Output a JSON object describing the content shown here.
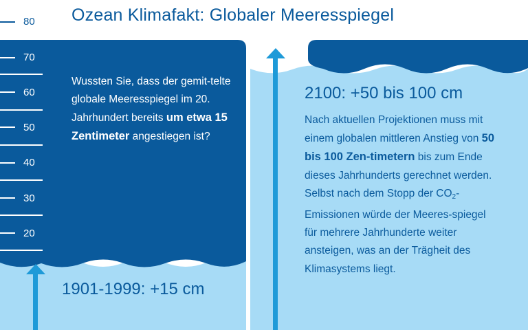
{
  "title": "Ozean Klimafakt: Globaler Meeresspiegel",
  "scale": {
    "unit": "cm",
    "labels": [
      "80",
      "70",
      "60",
      "50",
      "40",
      "30",
      "20"
    ]
  },
  "left_panel": {
    "text_before": "Wussten Sie, dass der gemit-telte globale Meeresspiegel im 20. Jahrhundert bereits",
    "text_bold": "um etwa 15 Zentimeter",
    "text_after": "angestiegen ist?",
    "stat": "1901-1999: +15 cm"
  },
  "right_panel": {
    "stat": "2100: +50 bis 100 cm",
    "text_before": "Nach aktuellen Projektionen muss mit einem globalen mittleren Anstieg von",
    "text_bold": "50 bis 100 Zen-timetern",
    "text_mid": "bis zum Ende dieses Jahrhunderts gerechnet werden. Selbst nach dem Stopp der CO",
    "text_sub": "2",
    "text_after": "-Emissionen würde der Meeres-spiegel für mehrere Jahrhunderte weiter ansteigen, was an der Trägheit des Klimasystems liegt."
  },
  "colors": {
    "dark_blue": "#0a5a9c",
    "light_blue": "#a7dbf6",
    "arrow_blue": "#1e9ad8",
    "text_blue": "#0a5a9c"
  },
  "icons": [
    "up-arrow-icon",
    "up-arrow-icon"
  ]
}
